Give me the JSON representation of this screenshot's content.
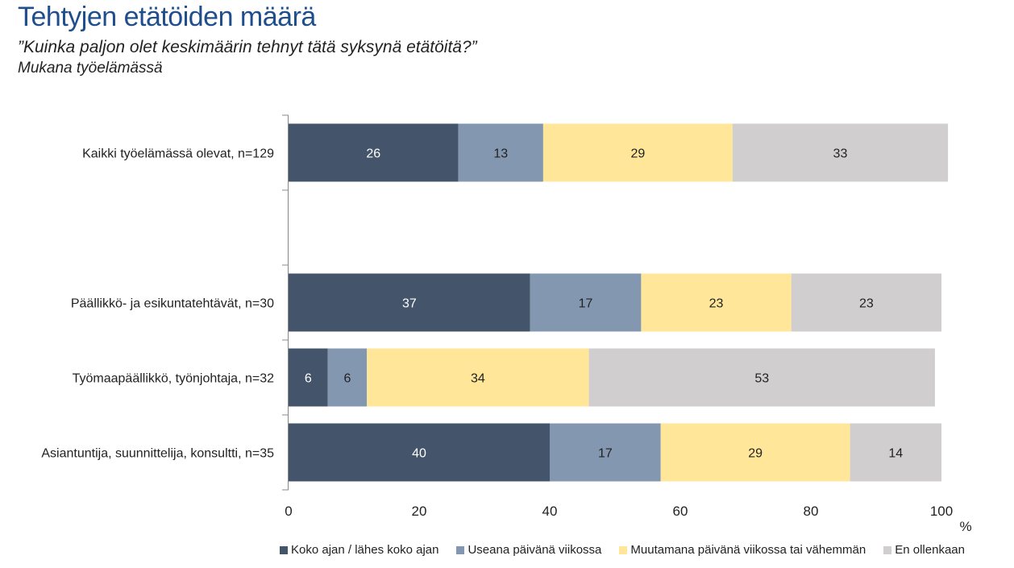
{
  "header": {
    "title": "Tehtyjen etätöiden määrä",
    "question": "”Kuinka paljon olet keskimäärin tehnyt tätä syksynä etätöitä?”",
    "subgroup": "Mukana työelämässä"
  },
  "chart_data": {
    "type": "bar",
    "orientation": "horizontal",
    "stacked": true,
    "title": "Tehtyjen etätöiden määrä",
    "subtitle": "”Kuinka paljon olet keskimäärin tehnyt tätä syksynä etätöitä?” Mukana työelämässä",
    "xlabel": "%",
    "ylabel": "",
    "xlim": [
      0,
      100
    ],
    "xticks": [
      0,
      20,
      40,
      60,
      80,
      100
    ],
    "grid": false,
    "legend_position": "bottom",
    "categories": [
      "Kaikki työelämässä olevat, n=129",
      "",
      "Päällikkö- ja esikuntatehtävät, n=30",
      "Työmaapäällikkö, työnjohtaja, n=32",
      "Asiantuntija, suunnittelija, konsultti, n=35"
    ],
    "series": [
      {
        "name": "Koko ajan / lähes koko ajan",
        "color": "#44546a",
        "label_color": "#ffffff",
        "values": [
          26,
          null,
          37,
          6,
          40
        ]
      },
      {
        "name": "Useana päivänä viikossa",
        "color": "#8497b0",
        "label_color": "#222222",
        "values": [
          13,
          null,
          17,
          6,
          17
        ]
      },
      {
        "name": "Muutamana päivänä viikossa tai vähemmän",
        "color": "#ffe699",
        "label_color": "#222222",
        "values": [
          29,
          null,
          23,
          34,
          29
        ]
      },
      {
        "name": "En ollenkaan",
        "color": "#d0cece",
        "label_color": "#222222",
        "values": [
          33,
          null,
          23,
          53,
          14
        ]
      }
    ]
  }
}
